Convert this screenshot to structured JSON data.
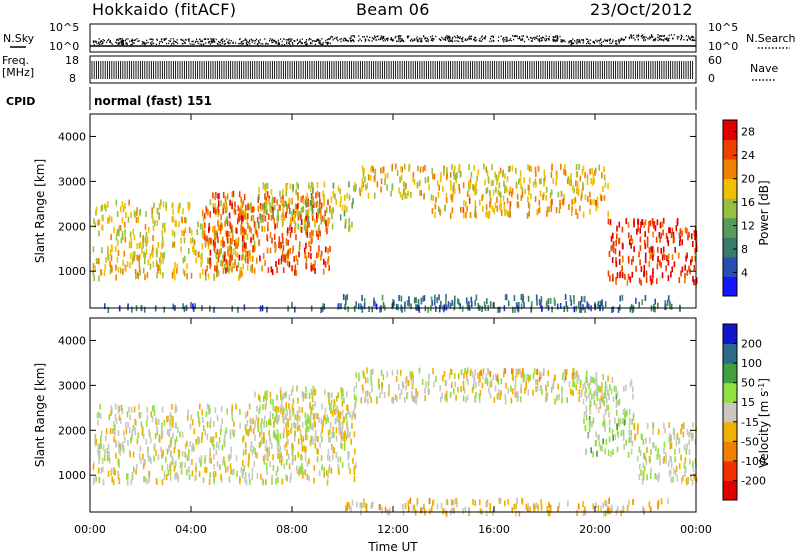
{
  "header": {
    "station": "Hokkaido (fitACF)",
    "beam": "Beam 06",
    "date": "23/Oct/2012"
  },
  "strip": {
    "nsky_label": "N.Sky",
    "nsearch_label": "N.Search",
    "ylabel_top": "10^5",
    "ylabel_bottom": "10^0",
    "freq_label_line1": "Freq.",
    "freq_label_line2": "[MHz]",
    "freq_top": "18",
    "freq_bottom": "8",
    "nave_top": "60",
    "nave_bottom": "0",
    "nave_label": "Nave",
    "cpid_label": "CPID",
    "cpid_value": "normal (fast) 151"
  },
  "colors": {
    "power_scale": [
      "#1414ff",
      "#2a4fb0",
      "#3a7a6a",
      "#5a9a5a",
      "#98c040",
      "#f0c000",
      "#f08000",
      "#f04000",
      "#e00000"
    ],
    "velocity_scale": [
      "#e00000",
      "#f03000",
      "#f08000",
      "#f0b000",
      "#c8c8c0",
      "#90e040",
      "#40a040",
      "#306a8a",
      "#1414c8"
    ]
  },
  "chart_data": [
    {
      "type": "heatmap",
      "title": "",
      "xlabel": "",
      "ylabel": "Slant Range [km]",
      "x_ticks": [
        "00:00",
        "04:00",
        "08:00",
        "12:00",
        "16:00",
        "20:00",
        "00:00"
      ],
      "y_ticks": [
        "1000",
        "2000",
        "3000",
        "4000"
      ],
      "xlim": [
        0,
        24
      ],
      "ylim": [
        180,
        4500
      ],
      "colorbar_label": "Power [dB]",
      "colorbar_ticks": [
        "4",
        "8",
        "12",
        "16",
        "20",
        "24",
        "28"
      ],
      "colorbar_range": [
        0,
        30
      ],
      "regions": [
        {
          "x": [
            0.1,
            3.0
          ],
          "y": [
            900,
            2600
          ],
          "value": 18
        },
        {
          "x": [
            3.2,
            6.5
          ],
          "y": [
            900,
            2600
          ],
          "value": 18
        },
        {
          "x": [
            4.5,
            9.5
          ],
          "y": [
            1000,
            2800
          ],
          "value": 24
        },
        {
          "x": [
            6.5,
            10.5
          ],
          "y": [
            2000,
            3000
          ],
          "value": 16
        },
        {
          "x": [
            10.5,
            20.5
          ],
          "y": [
            2700,
            3400
          ],
          "value": 18
        },
        {
          "x": [
            13.5,
            20.5
          ],
          "y": [
            2300,
            2700
          ],
          "value": 20
        },
        {
          "x": [
            20.5,
            24.0
          ],
          "y": [
            800,
            2200
          ],
          "value": 26
        },
        {
          "x": [
            10.0,
            23.0
          ],
          "y": [
            200,
            500
          ],
          "value": 8
        },
        {
          "x": [
            0.0,
            24.0
          ],
          "y": [
            200,
            300
          ],
          "value": 6
        }
      ]
    },
    {
      "type": "heatmap",
      "title": "",
      "xlabel": "Time UT",
      "ylabel": "Slant Range [km]",
      "x_ticks": [
        "00:00",
        "04:00",
        "08:00",
        "12:00",
        "16:00",
        "20:00",
        "00:00"
      ],
      "y_ticks": [
        "1000",
        "2000",
        "3000",
        "4000"
      ],
      "xlim": [
        0,
        24
      ],
      "ylim": [
        180,
        4500
      ],
      "colorbar_label": "Velocity [m s^-1]",
      "colorbar_ticks": [
        "200",
        "100",
        "50",
        "15",
        "-15",
        "-50",
        "-100",
        "-200"
      ],
      "colorbar_range": [
        -250,
        250
      ],
      "regions": [
        {
          "x": [
            0.1,
            10.5
          ],
          "y": [
            900,
            2600
          ],
          "value": 0
        },
        {
          "x": [
            6.5,
            10.5
          ],
          "y": [
            1800,
            3000
          ],
          "value": 0
        },
        {
          "x": [
            10.5,
            20.5
          ],
          "y": [
            2700,
            3400
          ],
          "value": 0
        },
        {
          "x": [
            14.0,
            19.5
          ],
          "y": [
            3200,
            3400
          ],
          "value": -60
        },
        {
          "x": [
            19.5,
            21.5
          ],
          "y": [
            1500,
            3200
          ],
          "value": 30
        },
        {
          "x": [
            21.5,
            24.0
          ],
          "y": [
            900,
            2200
          ],
          "value": 0
        },
        {
          "x": [
            10.0,
            23.0
          ],
          "y": [
            200,
            500
          ],
          "value": -40
        }
      ]
    }
  ]
}
